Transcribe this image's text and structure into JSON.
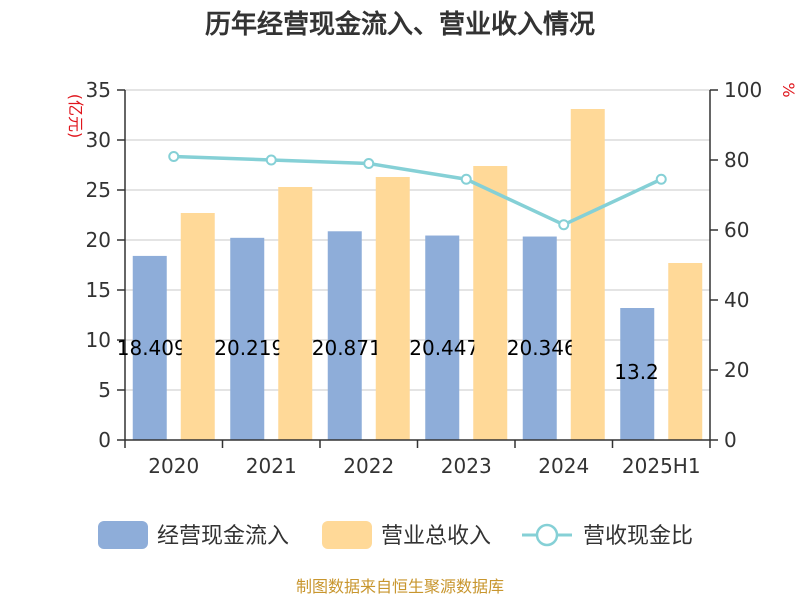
{
  "chart_data": {
    "type": "bar",
    "title": "历年经营现金流入、营业收入情况",
    "categories": [
      "2020",
      "2021",
      "2022",
      "2023",
      "2024",
      "2025H1"
    ],
    "series": [
      {
        "name": "经营现金流入",
        "type": "bar",
        "axis": "left",
        "color": "#8eadd9",
        "values": [
          18.409,
          20.219,
          20.871,
          20.447,
          20.346,
          13.2
        ],
        "labels": [
          "18.409",
          "20.219",
          "20.871",
          "20.447",
          "20.346",
          "13.2"
        ]
      },
      {
        "name": "营业总收入",
        "type": "bar",
        "axis": "left",
        "color": "#ffd998",
        "values": [
          22.7,
          25.3,
          26.3,
          27.4,
          33.1,
          17.7
        ]
      },
      {
        "name": "营收现金比",
        "type": "line",
        "axis": "right",
        "color": "#85d0d6",
        "values": [
          81,
          80,
          79,
          74.5,
          61.5,
          74.5
        ]
      }
    ],
    "y_left": {
      "unit": "(亿元)",
      "min": 0,
      "max": 35,
      "ticks": [
        0,
        5,
        10,
        15,
        20,
        25,
        30,
        35
      ]
    },
    "y_right": {
      "unit": "%",
      "min": 0,
      "max": 100,
      "ticks": [
        0,
        20,
        40,
        60,
        80,
        100
      ]
    },
    "grid": true,
    "legend_position": "bottom"
  },
  "source": "制图数据来自恒生聚源数据库"
}
